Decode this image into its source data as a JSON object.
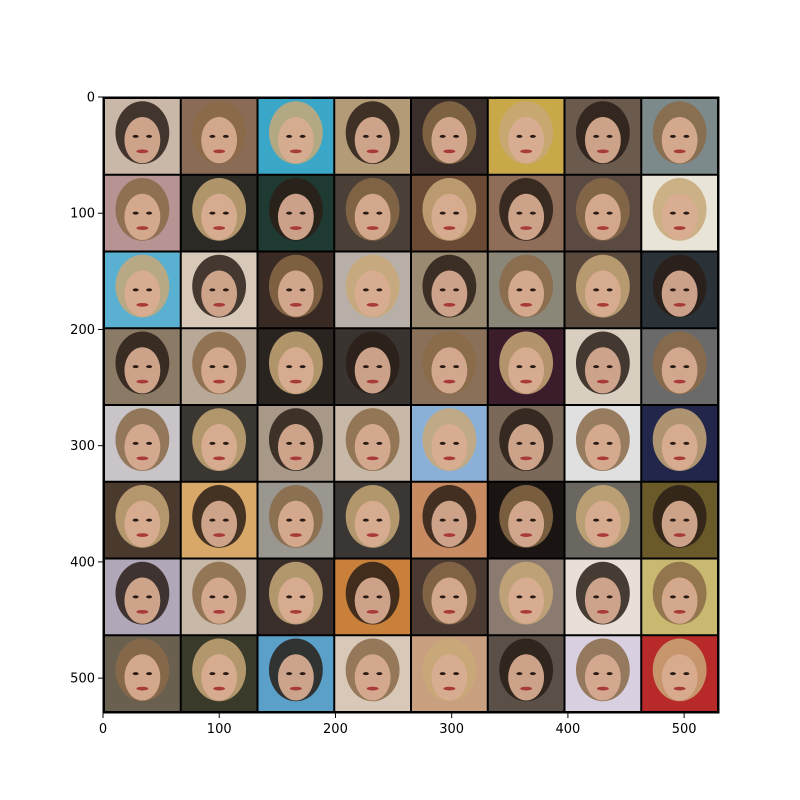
{
  "figure": {
    "kind": "image-grid",
    "description_of_content": "",
    "grid": {
      "rows": 8,
      "cols": 8,
      "separator_color": "#000000"
    },
    "x_axis": {
      "ticks": [
        0,
        100,
        200,
        300,
        400,
        500
      ],
      "range": [
        0,
        530
      ]
    },
    "y_axis": {
      "ticks": [
        0,
        100,
        200,
        300,
        400,
        500
      ],
      "range": [
        0,
        530
      ],
      "inverted": true
    },
    "tiles": [
      [
        "#c9b7a8",
        "#8a6b55",
        "#3aa7c9",
        "#b49b78",
        "#3a2e2a",
        "#c9a84a",
        "#6b5a4e",
        "#7d8a8c"
      ],
      [
        "#b79394",
        "#2b2a25",
        "#1e3a32",
        "#4a4038",
        "#6a4a35",
        "#8e6e58",
        "#5a4a42",
        "#e8e4d8"
      ],
      [
        "#5ab0d0",
        "#d8c8b8",
        "#3a2a24",
        "#b8b0a8",
        "#9a8a72",
        "#8a8678",
        "#5a4a3e",
        "#2a3238"
      ],
      [
        "#8a7a66",
        "#b8a898",
        "#2a2420",
        "#3a3430",
        "#8a7058",
        "#3a1c2a",
        "#d8cfc0",
        "#6a6a6a"
      ],
      [
        "#c8c4c8",
        "#3a3632",
        "#a89888",
        "#c8b8a8",
        "#8ab0d8",
        "#7a6858",
        "#e0e0e0",
        "#22264a"
      ],
      [
        "#4a3a2e",
        "#d8a868",
        "#9a9690",
        "#3a3634",
        "#c88a60",
        "#1a1412",
        "#6a6660",
        "#6a5a2a"
      ],
      [
        "#b0a8b8",
        "#c8b8a8",
        "#3a2e2a",
        "#c8803a",
        "#4a3a32",
        "#8a7a70",
        "#e8e0d8",
        "#c8b870"
      ],
      [
        "#6a6050",
        "#3a3a2a",
        "#5aa0c8",
        "#d8c8b8",
        "#c8a080",
        "#5a5048",
        "#d8d0e0",
        "#b82a2a"
      ]
    ]
  }
}
